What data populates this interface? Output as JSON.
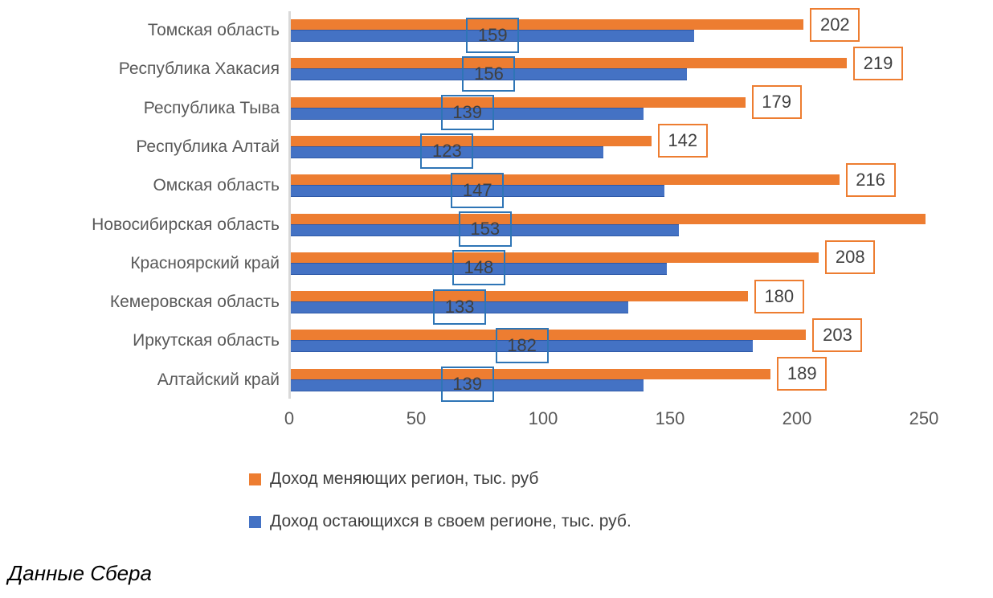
{
  "chart_data": {
    "type": "bar",
    "orientation": "horizontal-grouped",
    "categories": [
      "Томская область",
      "Республика Хакасия",
      "Республика Тыва",
      "Республика Алтай",
      "Омская область",
      "Новосибирская область",
      "Красноярский край",
      "Кемеровская область",
      "Иркутская область",
      "Алтайский край"
    ],
    "series": [
      {
        "name": "Доход меняющих регион, тыс. руб",
        "color": "#ED7D31",
        "values": [
          202,
          219,
          179,
          142,
          216,
          250,
          208,
          180,
          203,
          189
        ],
        "value_labels": [
          "202",
          "219",
          "179",
          "142",
          "216",
          "",
          "208",
          "180",
          "203",
          "189"
        ],
        "label_position": "outside-end"
      },
      {
        "name": "Доход остающихся в своем регионе, тыс. руб.",
        "color": "#4472C4",
        "values": [
          159,
          156,
          139,
          123,
          147,
          153,
          148,
          133,
          182,
          139
        ],
        "value_labels": [
          "159",
          "156",
          "139",
          "123",
          "147",
          "153",
          "148",
          "133",
          "182",
          "139"
        ],
        "label_position": "inside-center"
      }
    ],
    "xlim": [
      0,
      250
    ],
    "x_ticks": [
      "0",
      "50",
      "100",
      "150",
      "200",
      "250"
    ],
    "grid": false,
    "legend_position": "bottom-left",
    "title": ""
  },
  "footer": {
    "source_note": "Данные Сбера"
  },
  "colors": {
    "series_orange": "#ED7D31",
    "series_blue": "#4472C4",
    "blue_label_border": "#2E75B6",
    "axis_line": "#D9D9D9",
    "axis_text": "#595959",
    "data_label_text": "#404040"
  }
}
